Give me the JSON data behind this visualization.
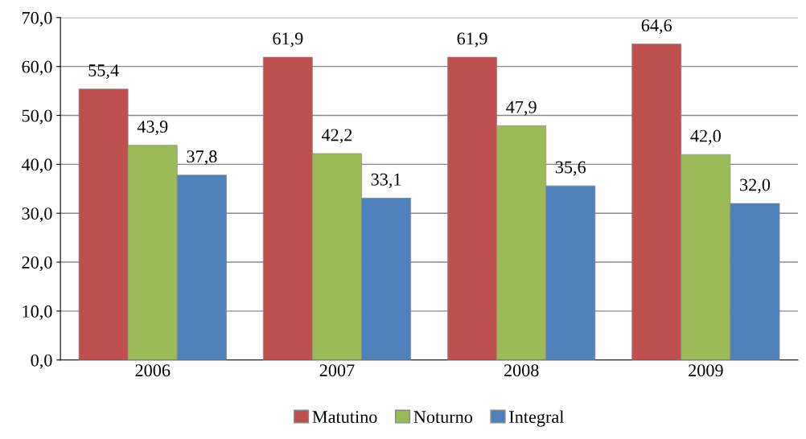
{
  "chart_data": {
    "type": "bar",
    "categories": [
      "2006",
      "2007",
      "2008",
      "2009"
    ],
    "series": [
      {
        "name": "Matutino",
        "color": "#c0504d",
        "values": [
          55.4,
          61.9,
          61.9,
          64.6
        ],
        "value_labels": [
          "55,4",
          "61,9",
          "61,9",
          "64,6"
        ]
      },
      {
        "name": "Noturno",
        "color": "#9bbb59",
        "values": [
          43.9,
          42.2,
          47.9,
          42.0
        ],
        "value_labels": [
          "43,9",
          "42,2",
          "47,9",
          "42,0"
        ]
      },
      {
        "name": "Integral",
        "color": "#4f81bd",
        "values": [
          37.8,
          33.1,
          35.6,
          32.0
        ],
        "value_labels": [
          "37,8",
          "33,1",
          "35,6",
          "32,0"
        ]
      }
    ],
    "ylim": [
      0,
      70
    ],
    "yticks": [
      {
        "value": 0,
        "label": "0,0"
      },
      {
        "value": 10,
        "label": "10,0"
      },
      {
        "value": 20,
        "label": "20,0"
      },
      {
        "value": 30,
        "label": "30,0"
      },
      {
        "value": 40,
        "label": "40,0"
      },
      {
        "value": 50,
        "label": "50,0"
      },
      {
        "value": 60,
        "label": "60,0"
      },
      {
        "value": 70,
        "label": "70,0"
      }
    ],
    "grid": "y",
    "legend": "bottom"
  }
}
